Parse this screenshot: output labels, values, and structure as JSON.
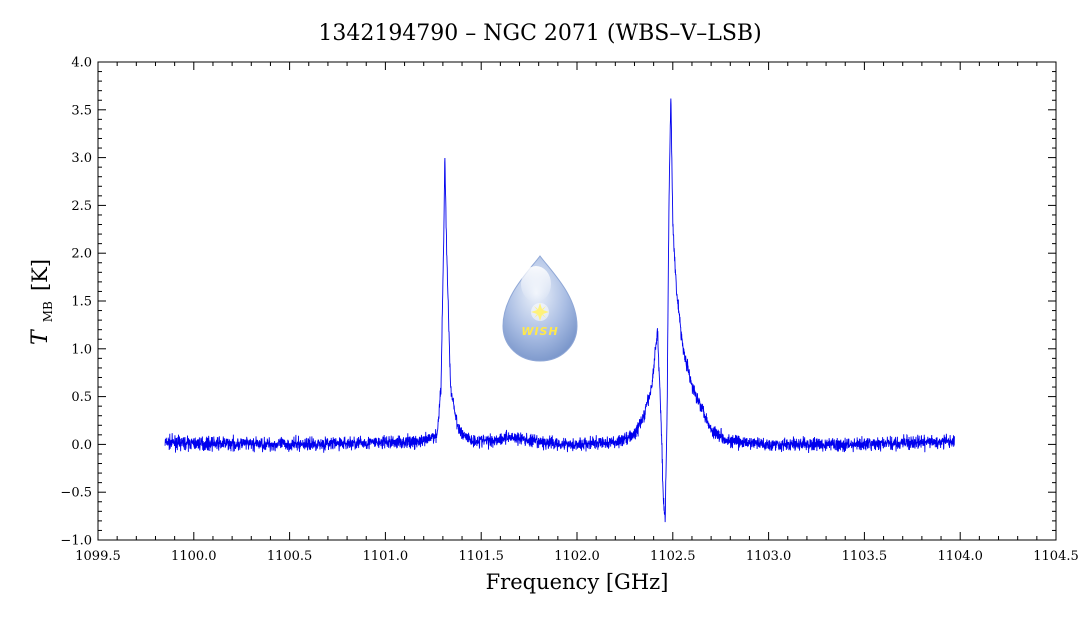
{
  "chart_data": {
    "type": "line",
    "title": "1342194790 – NGC 2071 (WBS–V–LSB)",
    "xlabel": "Frequency [GHz]",
    "ylabel": {
      "symbol": "T",
      "subscript": "MB",
      "unit": "[K]"
    },
    "xlim": [
      1099.5,
      1104.5
    ],
    "ylim": [
      -1.0,
      4.0
    ],
    "xticks": [
      "1099.5",
      "1100.0",
      "1100.5",
      "1101.0",
      "1101.5",
      "1102.0",
      "1102.5",
      "1103.0",
      "1103.5",
      "1104.0",
      "1104.5"
    ],
    "yticks": [
      "−1.0",
      "−0.5",
      "0.0",
      "0.5",
      "1.0",
      "1.5",
      "2.0",
      "2.5",
      "3.0",
      "3.5",
      "4.0"
    ],
    "xtick_values": [
      1099.5,
      1100.0,
      1100.5,
      1101.0,
      1101.5,
      1102.0,
      1102.5,
      1103.0,
      1103.5,
      1104.0,
      1104.5
    ],
    "ytick_values": [
      -1.0,
      -0.5,
      0.0,
      0.5,
      1.0,
      1.5,
      2.0,
      2.5,
      3.0,
      3.5,
      4.0
    ],
    "grid": false,
    "line_color": "#0000ee",
    "series": [
      {
        "x": [
          1099.85,
          1100.0,
          1100.5,
          1101.0,
          1101.2,
          1101.27,
          1101.29,
          1101.305,
          1101.31,
          1101.32,
          1101.34,
          1101.38,
          1101.45,
          1101.55,
          1101.65,
          1101.8,
          1102.0,
          1102.2,
          1102.3,
          1102.35,
          1102.39,
          1102.42,
          1102.44,
          1102.45,
          1102.46,
          1102.47,
          1102.48,
          1102.49,
          1102.5,
          1102.52,
          1102.55,
          1102.6,
          1102.65,
          1102.7,
          1102.8,
          1103.0,
          1103.5,
          1103.97
        ],
        "y": [
          0.02,
          0.01,
          0.0,
          0.02,
          0.03,
          0.1,
          0.6,
          2.2,
          3.05,
          2.0,
          0.6,
          0.15,
          0.04,
          0.04,
          0.08,
          0.02,
          0.0,
          0.02,
          0.1,
          0.3,
          0.6,
          1.2,
          0.2,
          -0.55,
          -0.78,
          0.3,
          2.5,
          3.67,
          2.3,
          1.6,
          1.05,
          0.6,
          0.4,
          0.15,
          0.03,
          0.0,
          0.0,
          0.03
        ]
      }
    ],
    "noise_rms": 0.035
  },
  "logo": {
    "text": "WISH",
    "colors": {
      "drop_light": "#dde6f4",
      "drop_dark": "#7f9ccf",
      "star": "#fff27a",
      "text": "#ffe84a"
    }
  }
}
